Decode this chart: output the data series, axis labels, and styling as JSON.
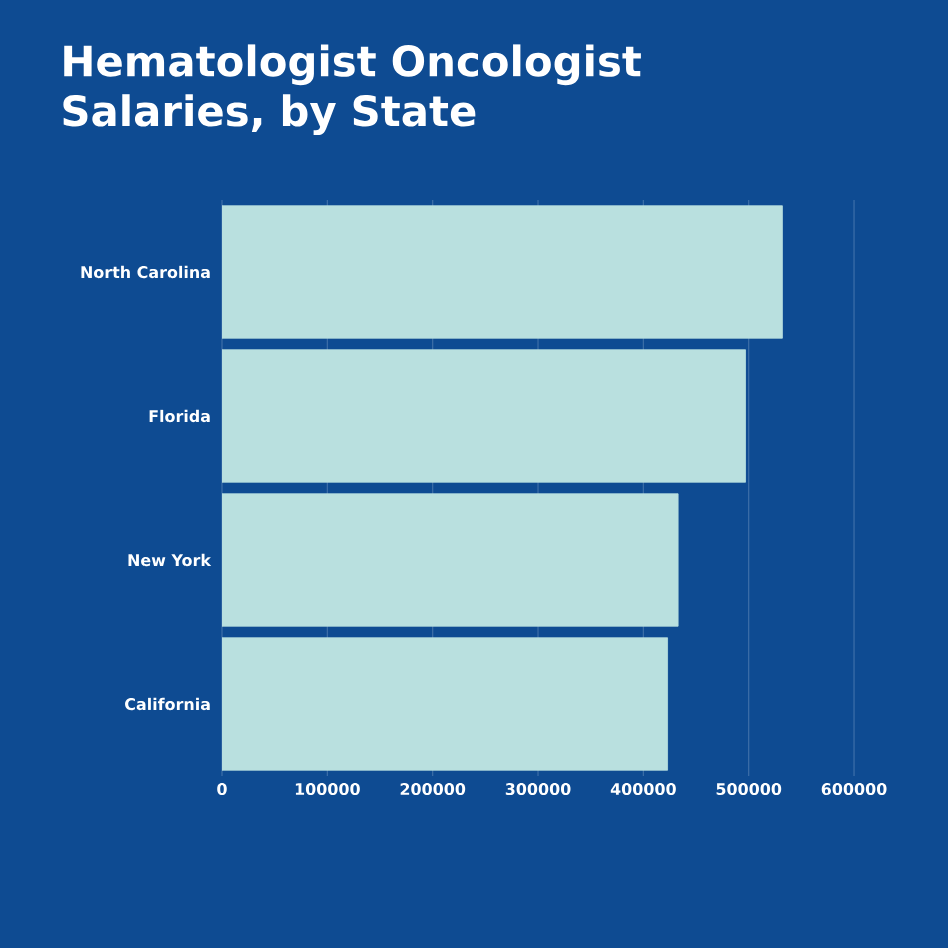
{
  "chart_data": {
    "type": "bar",
    "orientation": "horizontal",
    "title": "Hematologist Oncologist Salaries, by State",
    "categories": [
      "North Carolina",
      "Florida",
      "New York",
      "California"
    ],
    "values": [
      532000,
      497000,
      433000,
      423000
    ],
    "color": "#b9e0df",
    "xlim": [
      0,
      600000
    ],
    "xticks": [
      0,
      100000,
      200000,
      300000,
      400000,
      500000,
      600000
    ],
    "grid": "x"
  }
}
